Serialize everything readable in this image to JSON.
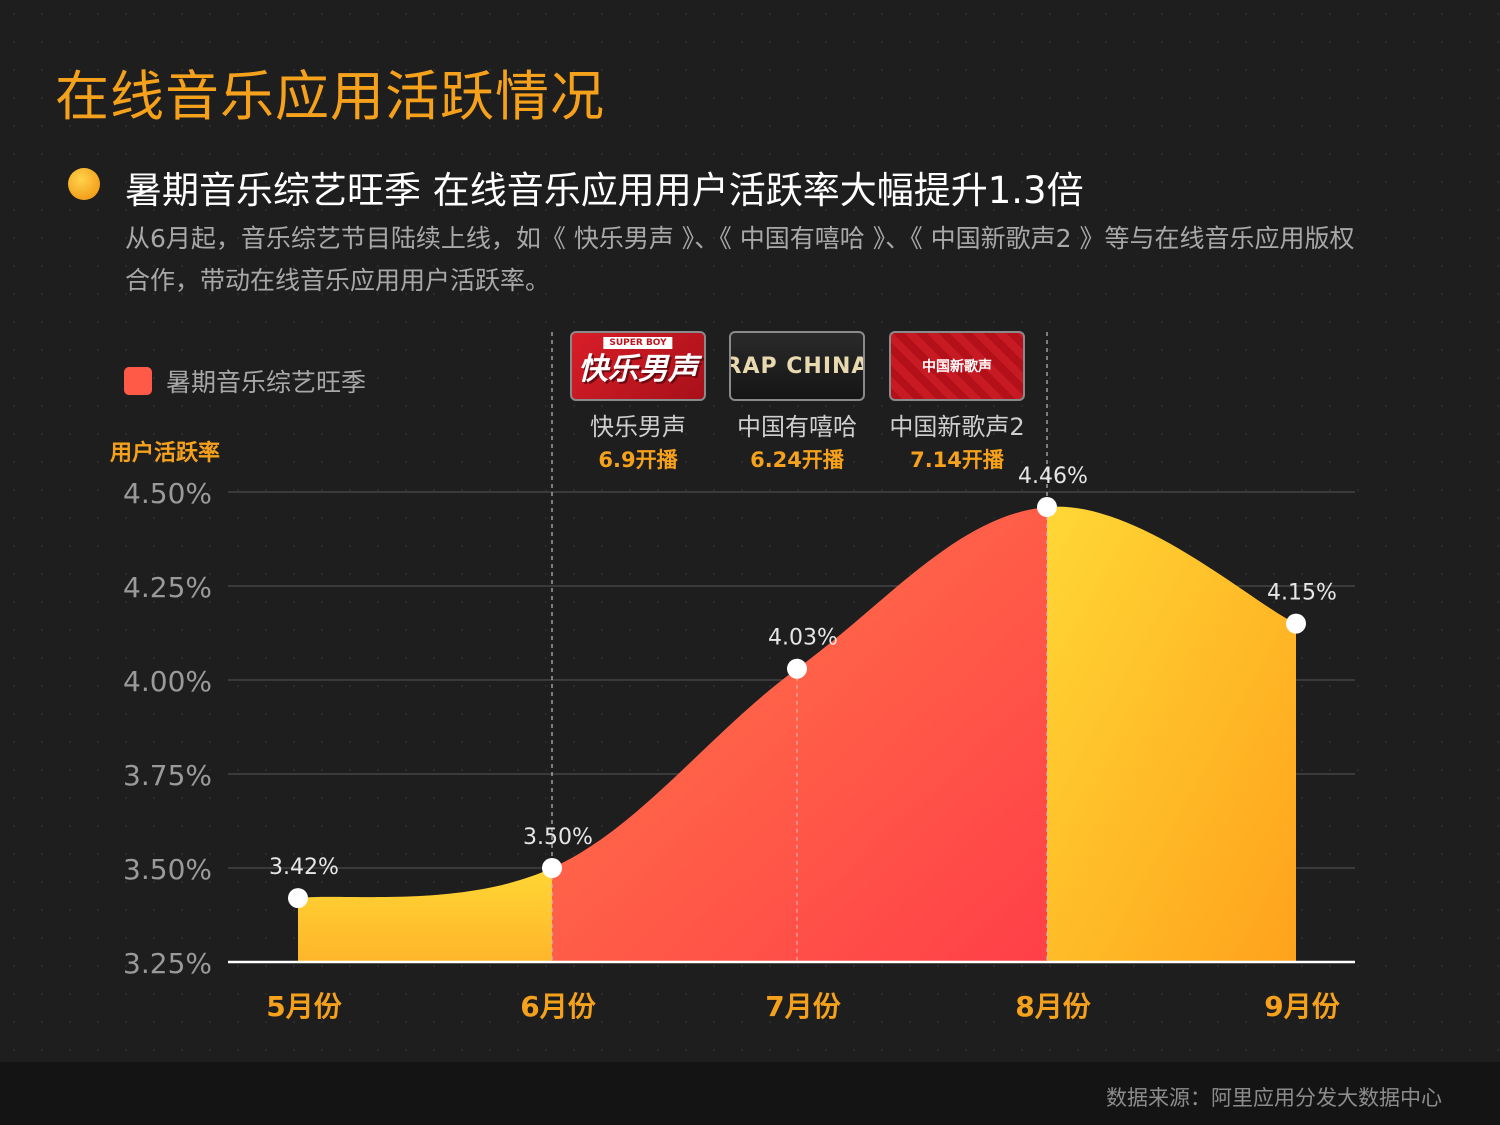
{
  "page": {
    "title": "在线音乐应用活跃情况",
    "headline": "暑期音乐综艺旺季 在线音乐应用用户活跃率大幅提升1.3倍",
    "description": "从6月起，音乐综艺节目陆续上线，如《 快乐男声 》、《 中国有嘻哈 》、《 中国新歌声2 》等与在线音乐应用版权合作，带动在线音乐应用用户活跃率。",
    "source": "数据来源：阿里应用分发大数据中心"
  },
  "legend": {
    "label": "暑期音乐综艺旺季"
  },
  "shows": [
    {
      "name": "快乐男声",
      "date": "6.9开播",
      "logo_text": "快乐男声",
      "logo_tag": "SUPER BOY"
    },
    {
      "name": "中国有嘻哈",
      "date": "6.24开播",
      "logo_text": "RAP CHINA",
      "logo_tag": ""
    },
    {
      "name": "中国新歌声2",
      "date": "7.14开播",
      "logo_text": "中国新歌声",
      "logo_tag": ""
    }
  ],
  "colors": {
    "accent": "#f5a11c",
    "highlight_red": "#ff4a44",
    "highlight_orange": "#ff6a48",
    "base_yellow": "#ffcf33",
    "base_orange": "#ffa51c"
  },
  "chart_data": {
    "type": "area",
    "title": "",
    "ylabel": "用户活跃率",
    "xlabel": "",
    "categories": [
      "5月份",
      "6月份",
      "7月份",
      "8月份",
      "9月份"
    ],
    "series": [
      {
        "name": "用户活跃率",
        "values": [
          3.42,
          3.5,
          4.03,
          4.46,
          4.15
        ],
        "labels": [
          "3.42%",
          "3.50%",
          "4.03%",
          "4.46%",
          "4.15%"
        ]
      }
    ],
    "ylim": [
      3.25,
      4.5
    ],
    "yticks": [
      4.5,
      4.25,
      4.0,
      3.75,
      3.5,
      3.25
    ],
    "ytick_labels": [
      "4.50%",
      "4.25%",
      "4.00%",
      "3.75%",
      "3.50%",
      "3.25%"
    ],
    "highlight": {
      "label": "暑期音乐综艺旺季",
      "from": "6月份",
      "to": "8月份"
    }
  }
}
